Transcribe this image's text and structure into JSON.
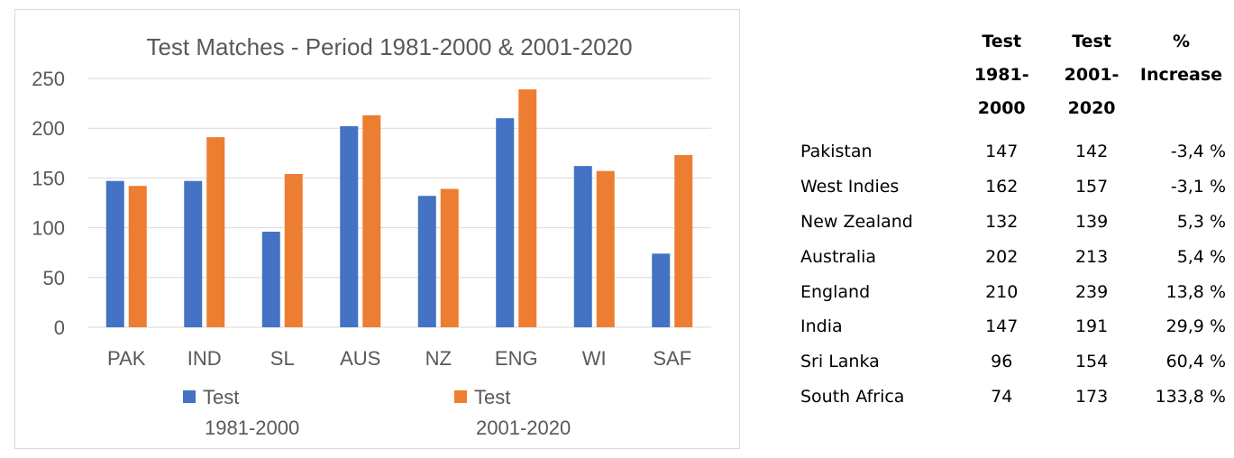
{
  "chart_data": {
    "type": "bar",
    "title": "Test Matches - Period 1981-2000 & 2001-2020",
    "categories": [
      "PAK",
      "IND",
      "SL",
      "AUS",
      "NZ",
      "ENG",
      "WI",
      "SAF"
    ],
    "series": [
      {
        "name": "Test 1981-2000",
        "name_lines": [
          "Test",
          "1981-2000"
        ],
        "color": "#4472c4",
        "values": [
          147,
          147,
          96,
          202,
          132,
          210,
          162,
          74
        ]
      },
      {
        "name": "Test 2001-2020",
        "name_lines": [
          "Test",
          "2001-2020"
        ],
        "color": "#ed7d31",
        "values": [
          142,
          191,
          154,
          213,
          139,
          239,
          157,
          173
        ]
      }
    ],
    "ylim": [
      0,
      250
    ],
    "yticks": [
      "0",
      "50",
      "100",
      "150",
      "200",
      "250"
    ],
    "grid": true,
    "legend": "bottom"
  },
  "table": {
    "headers": [
      "",
      [
        "Test",
        "1981-",
        "2000"
      ],
      [
        "Test",
        "2001-",
        "2020"
      ],
      [
        "%",
        "Increase"
      ]
    ],
    "rows": [
      [
        "Pakistan",
        "147",
        "142",
        "-3,4 %"
      ],
      [
        "West Indies",
        "162",
        "157",
        "-3,1 %"
      ],
      [
        "New Zealand",
        "132",
        "139",
        "5,3 %"
      ],
      [
        "Australia",
        "202",
        "213",
        "5,4 %"
      ],
      [
        "England",
        "210",
        "239",
        "13,8 %"
      ],
      [
        "India",
        "147",
        "191",
        "29,9 %"
      ],
      [
        "Sri Lanka",
        "96",
        "154",
        "60,4 %"
      ],
      [
        "South Africa",
        "74",
        "173",
        "133,8 %"
      ]
    ]
  }
}
